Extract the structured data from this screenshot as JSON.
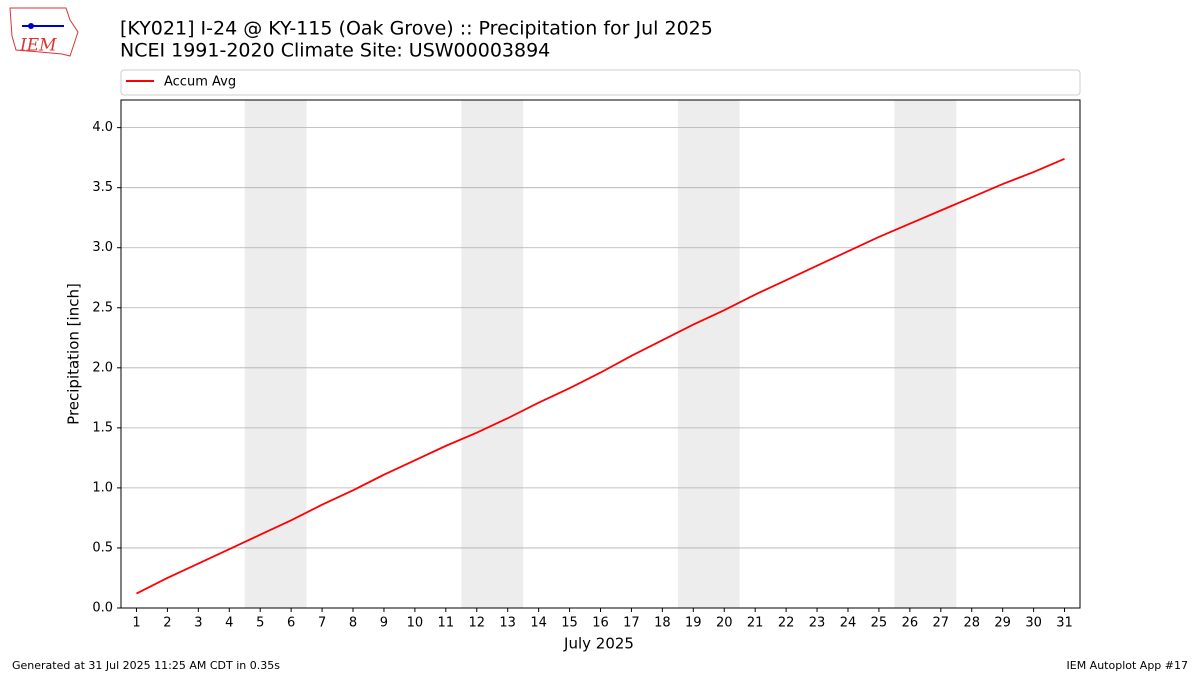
{
  "chart_data": {
    "type": "line",
    "title": "[KY021] I-24 @ KY-115 (Oak Grove) :: Precipitation for Jul 2025",
    "subtitle": "NCEI 1991-2020 Climate Site: USW00003894",
    "xlabel": "July 2025",
    "ylabel": "Precipitation [inch]",
    "x": [
      1,
      2,
      3,
      4,
      5,
      6,
      7,
      8,
      9,
      10,
      11,
      12,
      13,
      14,
      15,
      16,
      17,
      18,
      19,
      20,
      21,
      22,
      23,
      24,
      25,
      26,
      27,
      28,
      29,
      30,
      31
    ],
    "series": [
      {
        "name": "Accum Avg",
        "color": "#ff0000",
        "values": [
          0.12,
          0.25,
          0.37,
          0.49,
          0.61,
          0.73,
          0.86,
          0.98,
          1.11,
          1.23,
          1.35,
          1.46,
          1.58,
          1.71,
          1.83,
          1.96,
          2.1,
          2.23,
          2.36,
          2.48,
          2.61,
          2.73,
          2.85,
          2.97,
          3.09,
          3.2,
          3.31,
          3.42,
          3.53,
          3.63,
          3.74
        ]
      }
    ],
    "xlim": [
      0.5,
      31.5
    ],
    "ylim": [
      0,
      4.23
    ],
    "xticks": [
      1,
      2,
      3,
      4,
      5,
      6,
      7,
      8,
      9,
      10,
      11,
      12,
      13,
      14,
      15,
      16,
      17,
      18,
      19,
      20,
      21,
      22,
      23,
      24,
      25,
      26,
      27,
      28,
      29,
      30,
      31
    ],
    "yticks": [
      {
        "value": 0,
        "label": "0.0"
      },
      0.5,
      {
        "value": 1,
        "label": "1.0"
      },
      1.5,
      {
        "value": 2,
        "label": "2.0"
      },
      2.5,
      {
        "value": 3,
        "label": "3.0"
      },
      3.5,
      {
        "value": 4,
        "label": "4.0"
      }
    ],
    "shaded_spans": [
      [
        4.5,
        6.5
      ],
      [
        11.5,
        13.5
      ],
      [
        18.5,
        20.5
      ],
      [
        25.5,
        27.5
      ]
    ],
    "shade_color": "#ededed",
    "grid": true,
    "legend": "top"
  },
  "logo": "IEM",
  "footer": {
    "left": "Generated at 31 Jul 2025 11:25 AM CDT in 0.35s",
    "right": "IEM Autoplot App #17"
  }
}
